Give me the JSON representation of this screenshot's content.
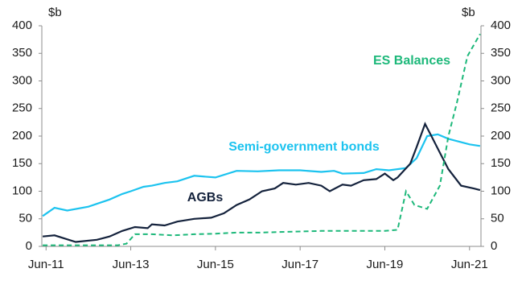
{
  "chart_data": {
    "type": "line",
    "y_unit": "$b",
    "y2_unit": "$b",
    "xlim": [
      2011.4,
      2021.77
    ],
    "xticks": [
      {
        "value": 2011.5,
        "label": "Jun-11"
      },
      {
        "value": 2013.5,
        "label": "Jun-13"
      },
      {
        "value": 2015.5,
        "label": "Jun-15"
      },
      {
        "value": 2017.5,
        "label": "Jun-17"
      },
      {
        "value": 2019.5,
        "label": "Jun-19"
      },
      {
        "value": 2021.5,
        "label": "Jun-21"
      }
    ],
    "ylim": [
      0,
      400
    ],
    "yticks": [
      0,
      50,
      100,
      150,
      200,
      250,
      300,
      350,
      400
    ],
    "y2lim": [
      0,
      400
    ],
    "y2ticks": [
      0,
      50,
      100,
      150,
      200,
      250,
      300,
      350,
      400
    ],
    "series": [
      {
        "name": "Semi-government bonds",
        "color": "#1cc3ef",
        "dashed": false,
        "x": [
          2011.42,
          2011.7,
          2012.0,
          2012.5,
          2013.0,
          2013.3,
          2013.5,
          2013.8,
          2014.0,
          2014.3,
          2014.6,
          2015.0,
          2015.5,
          2016.0,
          2016.5,
          2017.0,
          2017.5,
          2018.0,
          2018.3,
          2018.5,
          2019.0,
          2019.3,
          2019.6,
          2020.0,
          2020.25,
          2020.5,
          2020.75,
          2021.0,
          2021.5,
          2021.75
        ],
        "values": [
          55,
          70,
          65,
          72,
          85,
          95,
          100,
          108,
          110,
          115,
          118,
          128,
          125,
          137,
          136,
          138,
          138,
          135,
          137,
          132,
          133,
          140,
          138,
          142,
          160,
          200,
          203,
          195,
          185,
          182
        ]
      },
      {
        "name": "AGBs",
        "color": "#14223c",
        "dashed": false,
        "x": [
          2011.42,
          2011.7,
          2012.2,
          2012.7,
          2013.0,
          2013.3,
          2013.6,
          2013.9,
          2014.0,
          2014.3,
          2014.6,
          2015.0,
          2015.4,
          2015.7,
          2016.0,
          2016.3,
          2016.6,
          2016.9,
          2017.1,
          2017.4,
          2017.7,
          2018.0,
          2018.2,
          2018.5,
          2018.7,
          2019.0,
          2019.3,
          2019.5,
          2019.7,
          2019.8,
          2020.1,
          2020.25,
          2020.45,
          2020.6,
          2020.8,
          2021.0,
          2021.3,
          2021.6,
          2021.75
        ],
        "values": [
          18,
          20,
          8,
          12,
          18,
          28,
          35,
          33,
          40,
          38,
          45,
          50,
          52,
          60,
          75,
          85,
          100,
          105,
          115,
          112,
          115,
          110,
          100,
          112,
          110,
          120,
          122,
          132,
          120,
          125,
          150,
          180,
          222,
          200,
          170,
          140,
          110,
          105,
          102
        ]
      },
      {
        "name": "ES Balances",
        "color": "#1db87a",
        "dashed": true,
        "x": [
          2011.42,
          2012.0,
          2012.5,
          2013.2,
          2013.4,
          2013.6,
          2014.0,
          2014.5,
          2015.0,
          2015.5,
          2016.0,
          2016.5,
          2017.0,
          2017.5,
          2018.0,
          2018.5,
          2019.0,
          2019.5,
          2019.8,
          2020.0,
          2020.2,
          2020.5,
          2020.8,
          2021.0,
          2021.2,
          2021.45,
          2021.75
        ],
        "values": [
          2,
          2,
          2,
          2,
          5,
          22,
          22,
          20,
          22,
          23,
          25,
          25,
          26,
          27,
          28,
          28,
          28,
          28,
          30,
          100,
          75,
          68,
          110,
          200,
          260,
          345,
          385
        ]
      }
    ]
  }
}
